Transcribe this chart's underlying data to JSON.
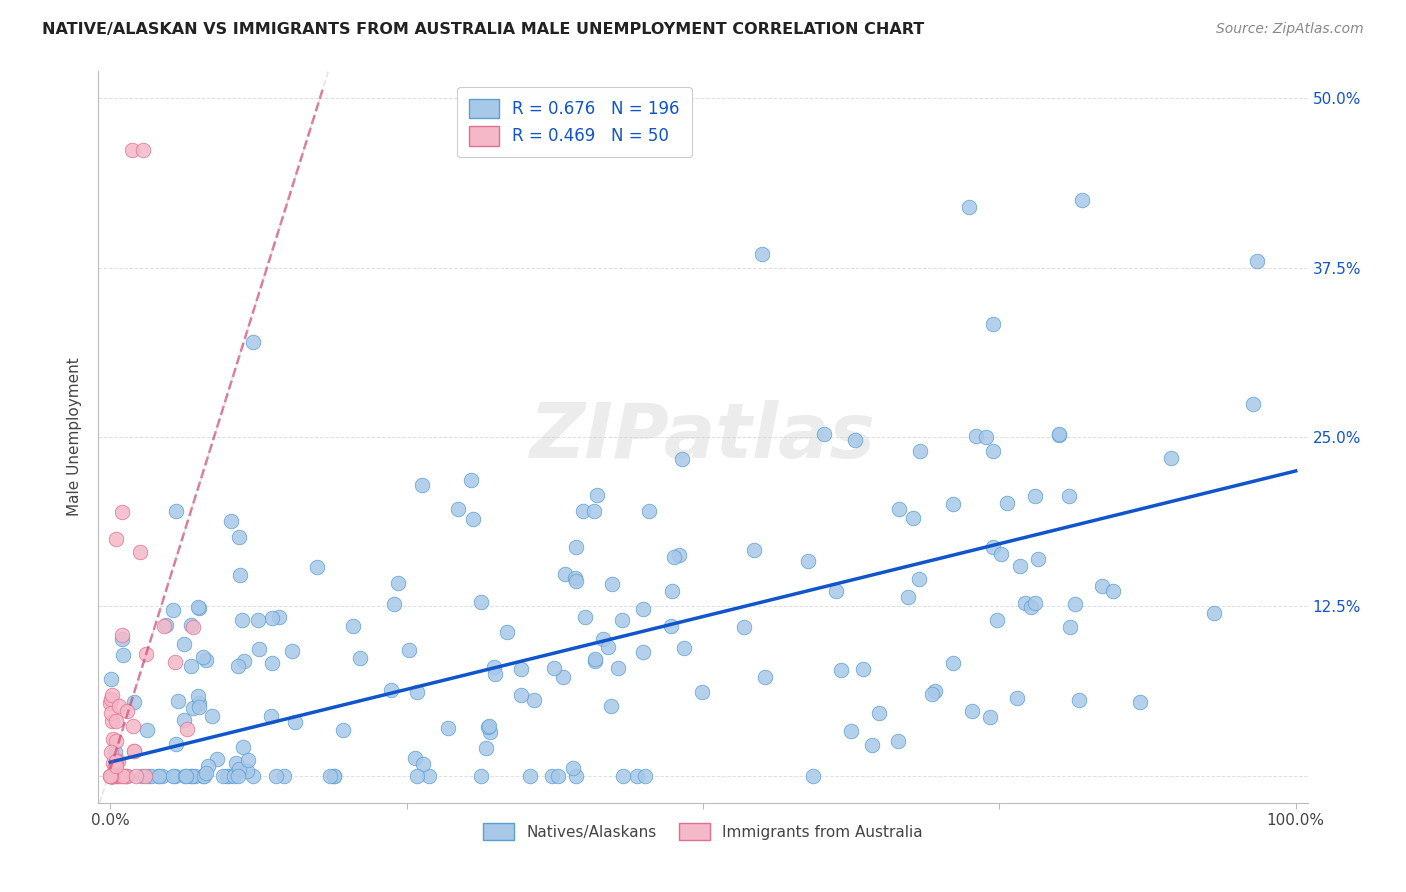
{
  "title": "NATIVE/ALASKAN VS IMMIGRANTS FROM AUSTRALIA MALE UNEMPLOYMENT CORRELATION CHART",
  "source": "Source: ZipAtlas.com",
  "ylabel": "Male Unemployment",
  "blue_R": 0.676,
  "blue_N": 196,
  "pink_R": 0.469,
  "pink_N": 50,
  "blue_color": "#a8c8e8",
  "blue_edge_color": "#5a9fd4",
  "pink_color": "#f4b8c8",
  "pink_edge_color": "#e07090",
  "blue_line_color": "#1155cc",
  "pink_line_color": "#cc3366",
  "legend_label_blue": "Natives/Alaskans",
  "legend_label_pink": "Immigrants from Australia",
  "background_color": "#ffffff",
  "grid_color": "#e0e0e0",
  "watermark_color": "#d0d0d0",
  "tick_color": "#1155cc",
  "title_color": "#222222",
  "source_color": "#888888"
}
